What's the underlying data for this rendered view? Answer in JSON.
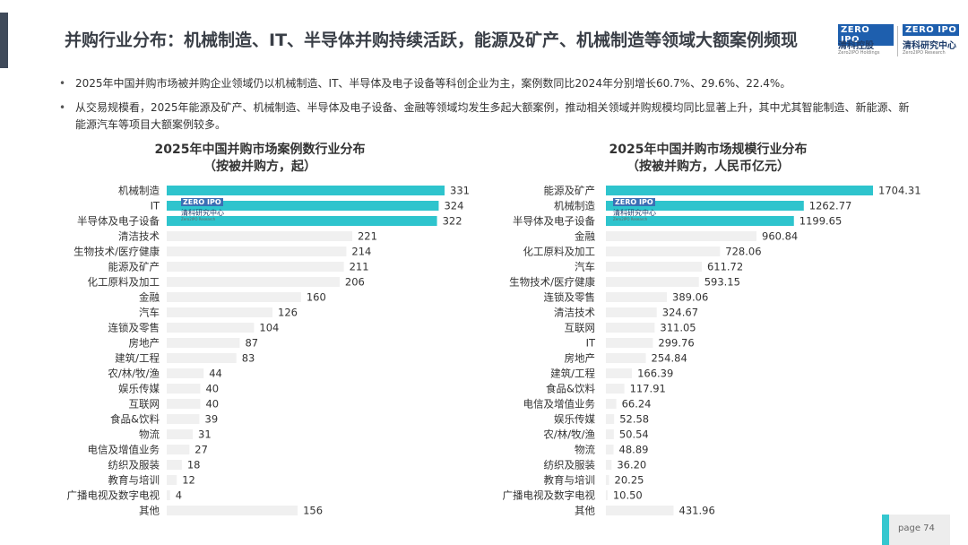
{
  "header": {
    "title": "并购行业分布：机械制造、IT、半导体并购持续活跃，能源及矿产、机械制造等领域大额案例频现",
    "logo_left": {
      "badge": "ZERO IPO",
      "cn": "清科控股",
      "en": "Zero2IPO Holdings"
    },
    "logo_right": {
      "badge": "ZERO IPO",
      "cn": "清科研究中心",
      "en": "Zero2IPO Research"
    }
  },
  "bullets": [
    "2025年中国并购市场被并购企业领域仍以机械制造、IT、半导体及电子设备等科创企业为主，案例数同比2024年分别增长60.7%、29.6%、22.4%。",
    "从交易规模看，2025年能源及矿产、机械制造、半导体及电子设备、金融等领域均发生多起大额案例，推动相关领域并购规模均同比显著上升，其中尤其智能制造、新能源、新能源汽车等项目大额案例较多。"
  ],
  "watermark": {
    "badge": "ZERO IPO",
    "cn": "清科研究中心",
    "en": "Zero2IPO Research"
  },
  "colors": {
    "highlight_bar": "#2ec4cd",
    "bar": "#f0f0f0",
    "title_bar": "#3f4a5a"
  },
  "chart_data": [
    {
      "type": "bar",
      "orientation": "horizontal",
      "title": "2025年中国并购市场案例数行业分布",
      "subtitle": "（按被并购方，起）",
      "categories": [
        "机械制造",
        "IT",
        "半导体及电子设备",
        "清洁技术",
        "生物技术/医疗健康",
        "能源及矿产",
        "化工原料及加工",
        "金融",
        "汽车",
        "连锁及零售",
        "房地产",
        "建筑/工程",
        "农/林/牧/渔",
        "娱乐传媒",
        "互联网",
        "食品&饮料",
        "物流",
        "电信及增值业务",
        "纺织及服装",
        "教育与培训",
        "广播电视及数字电视",
        "其他"
      ],
      "values": [
        331,
        324,
        322,
        221,
        214,
        211,
        206,
        160,
        126,
        104,
        87,
        83,
        44,
        40,
        40,
        39,
        31,
        27,
        18,
        12,
        4,
        156
      ],
      "value_labels": [
        "331",
        "324",
        "322",
        "221",
        "214",
        "211",
        "206",
        "160",
        "126",
        "104",
        "87",
        "83",
        "44",
        "40",
        "40",
        "39",
        "31",
        "27",
        "18",
        "12",
        "4",
        "156"
      ],
      "highlighted": [
        0,
        1,
        2
      ],
      "xlim": [
        0,
        331
      ]
    },
    {
      "type": "bar",
      "orientation": "horizontal",
      "title": "2025年中国并购市场规模行业分布",
      "subtitle": "（按被并购方，人民币亿元）",
      "categories": [
        "能源及矿产",
        "机械制造",
        "半导体及电子设备",
        "金融",
        "化工原料及加工",
        "汽车",
        "生物技术/医疗健康",
        "连锁及零售",
        "清洁技术",
        "互联网",
        "IT",
        "房地产",
        "建筑/工程",
        "食品&饮料",
        "电信及增值业务",
        "娱乐传媒",
        "农/林/牧/渔",
        "物流",
        "纺织及服装",
        "教育与培训",
        "广播电视及数字电视",
        "其他"
      ],
      "values": [
        1704.31,
        1262.77,
        1199.65,
        960.84,
        728.06,
        611.72,
        593.15,
        389.06,
        324.67,
        311.05,
        299.76,
        254.84,
        166.39,
        117.91,
        66.24,
        52.58,
        50.54,
        48.89,
        36.2,
        20.25,
        10.5,
        431.96
      ],
      "value_labels": [
        "1704.31",
        "1262.77",
        "1199.65",
        "960.84",
        "728.06",
        "611.72",
        "593.15",
        "389.06",
        "324.67",
        "311.05",
        "299.76",
        "254.84",
        "166.39",
        "117.91",
        "66.24",
        "52.58",
        "50.54",
        "48.89",
        "36.20",
        "20.25",
        "10.50",
        "431.96"
      ],
      "highlighted": [
        0,
        1,
        2
      ],
      "xlim": [
        0,
        1704.31
      ]
    }
  ],
  "footer": {
    "page_label": "page  74"
  }
}
